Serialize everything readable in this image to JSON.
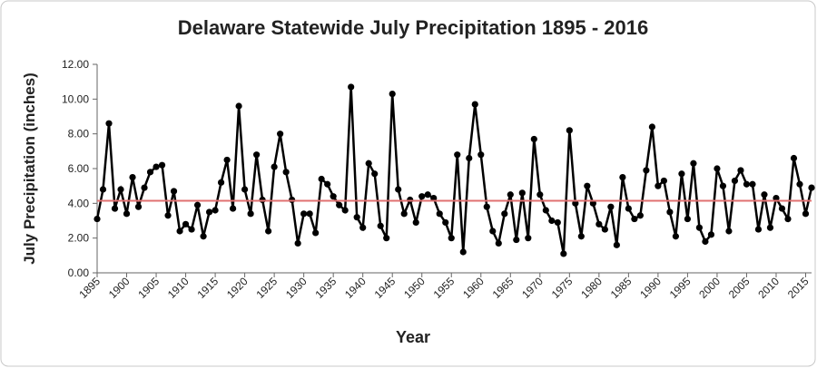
{
  "chart_data": {
    "type": "line",
    "title": "Delaware Statewide July Precipitation 1895 - 2016",
    "x_label": "Year",
    "y_label": "July Precipitation (inches)",
    "x": [
      1895,
      1896,
      1897,
      1898,
      1899,
      1900,
      1901,
      1902,
      1903,
      1904,
      1905,
      1906,
      1907,
      1908,
      1909,
      1910,
      1911,
      1912,
      1913,
      1914,
      1915,
      1916,
      1917,
      1918,
      1919,
      1920,
      1921,
      1922,
      1923,
      1924,
      1925,
      1926,
      1927,
      1928,
      1929,
      1930,
      1931,
      1932,
      1933,
      1934,
      1935,
      1936,
      1937,
      1938,
      1939,
      1940,
      1941,
      1942,
      1943,
      1944,
      1945,
      1946,
      1947,
      1948,
      1949,
      1950,
      1951,
      1952,
      1953,
      1954,
      1955,
      1956,
      1957,
      1958,
      1959,
      1960,
      1961,
      1962,
      1963,
      1964,
      1965,
      1966,
      1967,
      1968,
      1969,
      1970,
      1971,
      1972,
      1973,
      1974,
      1975,
      1976,
      1977,
      1978,
      1979,
      1980,
      1981,
      1982,
      1983,
      1984,
      1985,
      1986,
      1987,
      1988,
      1989,
      1990,
      1991,
      1992,
      1993,
      1994,
      1995,
      1996,
      1997,
      1998,
      1999,
      2000,
      2001,
      2002,
      2003,
      2004,
      2005,
      2006,
      2007,
      2008,
      2009,
      2010,
      2011,
      2012,
      2013,
      2014,
      2015,
      2016
    ],
    "series": [
      {
        "color": "#000000",
        "values": [
          3.1,
          4.8,
          8.6,
          3.7,
          4.8,
          3.4,
          5.5,
          3.8,
          4.9,
          5.8,
          6.1,
          6.2,
          3.3,
          4.7,
          2.4,
          2.8,
          2.5,
          3.9,
          2.1,
          3.5,
          3.6,
          5.2,
          6.5,
          3.7,
          9.6,
          4.8,
          3.4,
          6.8,
          4.2,
          2.4,
          6.1,
          8.0,
          5.8,
          4.2,
          1.7,
          3.4,
          3.4,
          2.3,
          5.4,
          5.1,
          4.4,
          3.9,
          3.6,
          10.7,
          3.2,
          2.6,
          6.3,
          5.7,
          2.7,
          2.0,
          10.3,
          4.8,
          3.4,
          4.2,
          2.9,
          4.4,
          4.5,
          4.3,
          3.4,
          2.9,
          2.0,
          6.8,
          1.2,
          6.6,
          9.7,
          6.8,
          3.8,
          2.4,
          1.7,
          3.4,
          4.5,
          1.9,
          4.6,
          2.0,
          7.7,
          4.5,
          3.6,
          3.0,
          2.9,
          1.1,
          8.2,
          4.0,
          2.1,
          5.0,
          4.0,
          2.8,
          2.5,
          3.8,
          1.6,
          5.5,
          3.7,
          3.1,
          3.3,
          5.9,
          8.4,
          5.0,
          5.3,
          3.5,
          2.1,
          5.7,
          3.1,
          6.3,
          2.6,
          1.8,
          2.2,
          6.0,
          5.0,
          2.4,
          5.3,
          5.9,
          5.1,
          5.1,
          2.5,
          4.5,
          2.6,
          4.3,
          3.7,
          3.1,
          6.6,
          5.1,
          3.4,
          4.9
        ]
      }
    ],
    "reference_line": {
      "value": 4.15,
      "color": "#e07070"
    },
    "xlim": [
      1895,
      2016
    ],
    "xticks": [
      1895,
      1900,
      1905,
      1910,
      1915,
      1920,
      1925,
      1930,
      1935,
      1940,
      1945,
      1950,
      1955,
      1960,
      1965,
      1970,
      1975,
      1980,
      1985,
      1990,
      1995,
      2000,
      2005,
      2010,
      2015
    ],
    "ylim": [
      0,
      12
    ],
    "yticks": [
      {
        "value": 0,
        "label": "0.00"
      },
      {
        "value": 2,
        "label": "2.00"
      },
      {
        "value": 4,
        "label": "4.00"
      },
      {
        "value": 6,
        "label": "6.00"
      },
      {
        "value": 8,
        "label": "8.00"
      },
      {
        "value": 10,
        "label": "10.00"
      },
      {
        "value": 12,
        "label": "12.00"
      }
    ],
    "grid": false
  }
}
